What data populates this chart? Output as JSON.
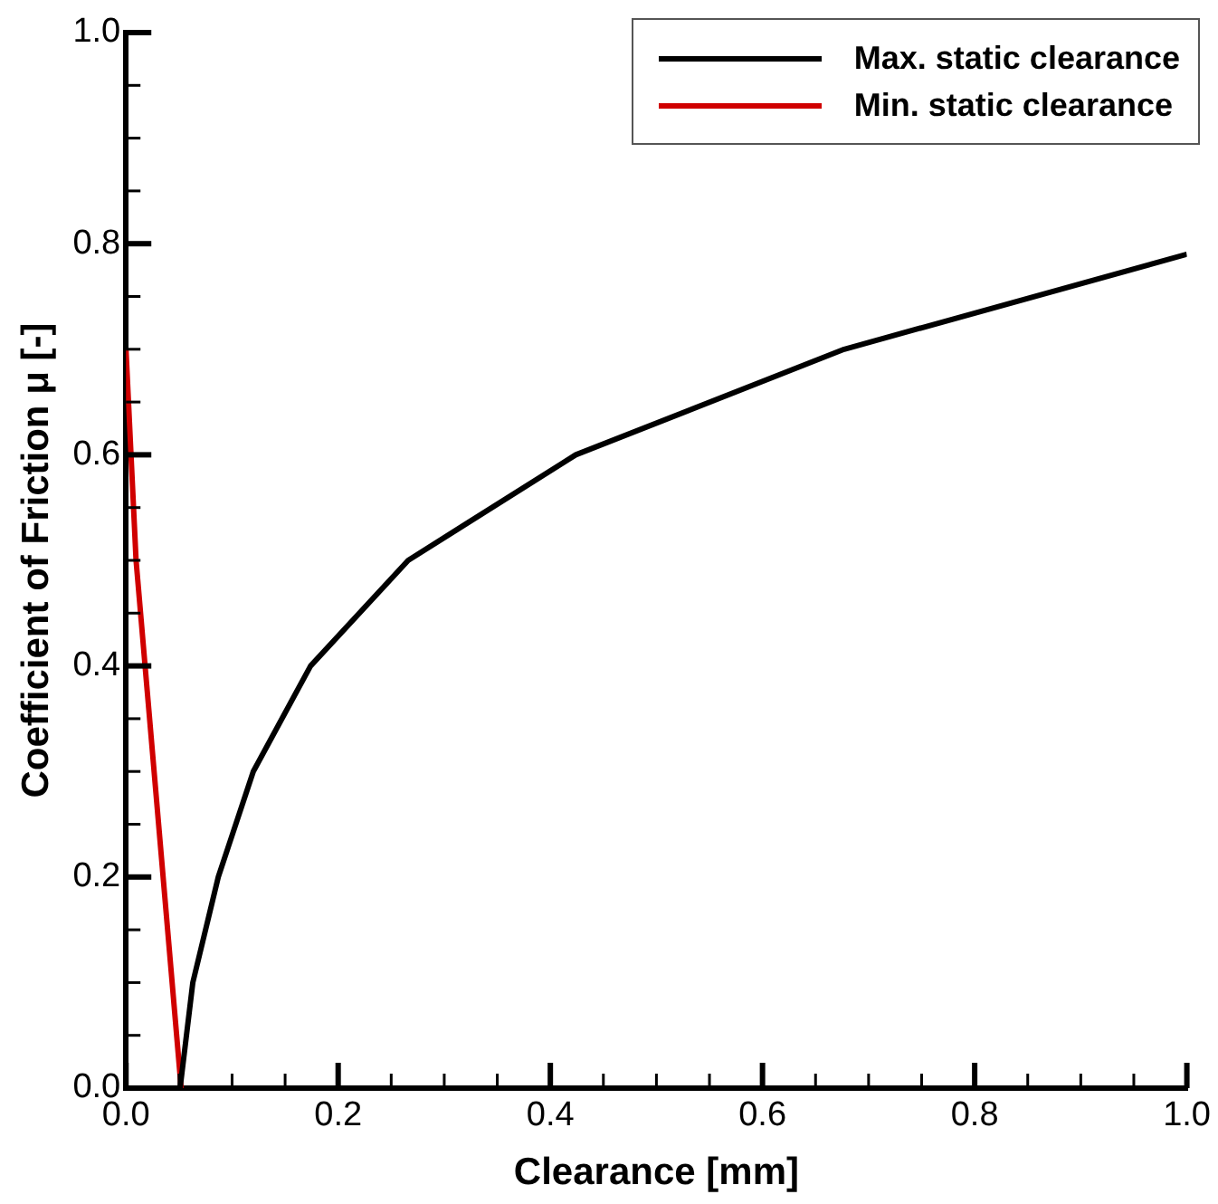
{
  "chart_data": {
    "type": "line",
    "xlabel": "Clearance [mm]",
    "ylabel": "Coefficient of Friction μ [-]",
    "xlim": [
      0,
      1
    ],
    "xticks": [
      {
        "value": 0,
        "label": "0.0"
      },
      0.2,
      0.4,
      0.6,
      0.8,
      {
        "value": 1,
        "label": "1.0"
      }
    ],
    "ylim": [
      0,
      1
    ],
    "yticks": [
      {
        "value": 0,
        "label": "0.0"
      },
      0.2,
      0.4,
      0.6,
      0.8,
      {
        "value": 1,
        "label": "1.0"
      }
    ],
    "legend": "top right",
    "marker": "none",
    "line_style": "solid",
    "series": [
      {
        "name": "Max. static clearance",
        "color": "#000000",
        "x": [
          0.051,
          0.063,
          0.087,
          0.12,
          0.174,
          0.266,
          0.424,
          0.677,
          1.0
        ],
        "values": [
          0,
          0.1,
          0.2,
          0.3,
          0.4,
          0.5,
          0.6,
          0.7,
          0.79
        ]
      },
      {
        "name": "Min. static clearance",
        "color": "#d00000",
        "x": [
          0,
          0.0095,
          0.052
        ],
        "values": [
          0.7,
          0.5,
          0
        ]
      }
    ]
  }
}
